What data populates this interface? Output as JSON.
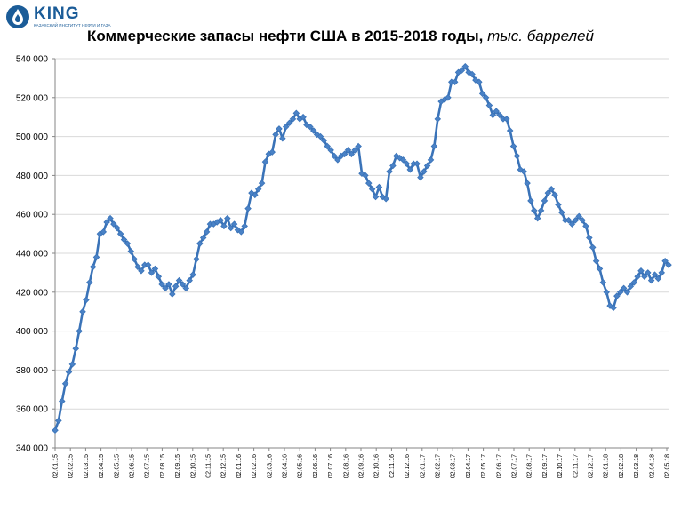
{
  "logo": {
    "brand": "KING",
    "subtitle": "КАЗАХСКИЙ ИНСТИТУТ НЕФТИ И ГАЗА"
  },
  "colors": {
    "series": "#3a73b8",
    "marker_fill": "#4a82c6",
    "grid": "#d9d9d9",
    "axis": "#868686",
    "brand": "#1b5c98"
  },
  "chart_data": {
    "type": "line",
    "title": "Коммерческие запасы нефти США в 2015-2018 годы,",
    "title_unit": "тыс. баррелей",
    "xlabel": "",
    "ylabel": "",
    "ylim": [
      340000,
      540000
    ],
    "y_ticks": [
      "540 000",
      "520 000",
      "500 000",
      "480 000",
      "460 000",
      "440 000",
      "420 000",
      "400 000",
      "380 000",
      "360 000",
      "340 000"
    ],
    "x_tick_labels": [
      "02.01.15",
      "02.02.15",
      "02.03.15",
      "02.04.15",
      "02.05.15",
      "02.06.15",
      "02.07.15",
      "02.08.15",
      "02.09.15",
      "02.10.15",
      "02.11.15",
      "02.12.15",
      "02.01.16",
      "02.02.16",
      "02.03.16",
      "02.04.16",
      "02.05.16",
      "02.06.16",
      "02.07.16",
      "02.08.16",
      "02.09.16",
      "02.10.16",
      "02.11.16",
      "02.12.16",
      "02.01.17",
      "02.02.17",
      "02.03.17",
      "02.04.17",
      "02.05.17",
      "02.06.17",
      "02.07.17",
      "02.08.17",
      "02.09.17",
      "02.10.17",
      "02.11.17",
      "02.12.17",
      "02.01.18",
      "02.02.18",
      "02.03.18",
      "02.04.18",
      "02.05.18"
    ],
    "grid": true,
    "legend": "none",
    "series": [
      {
        "values": [
          349000,
          354000,
          364000,
          373000,
          379000,
          383000,
          391000,
          400000,
          410000,
          416000,
          425000,
          433000,
          438000,
          450000,
          451000,
          456000,
          458000,
          455000,
          453000,
          450000,
          447000,
          445000,
          441000,
          437000,
          433000,
          431000,
          434000,
          434000,
          430000,
          432000,
          428000,
          424000,
          422000,
          424000,
          419000,
          423000,
          426000,
          424000,
          422000,
          426000,
          429000,
          437000,
          445000,
          448000,
          451000,
          455000,
          455000,
          456000,
          457000,
          454000,
          458000,
          453000,
          455000,
          452000,
          451000,
          454000,
          463000,
          471000,
          470000,
          473000,
          476000,
          487000,
          491000,
          492000,
          501000,
          504000,
          499000,
          505000,
          507000,
          509000,
          512000,
          509000,
          510000,
          506000,
          505000,
          503000,
          501000,
          500000,
          498000,
          495000,
          493000,
          490000,
          488000,
          490000,
          491000,
          493000,
          491000,
          493000,
          495000,
          481000,
          480000,
          476000,
          473000,
          469000,
          474000,
          469000,
          468000,
          482000,
          485000,
          490000,
          489000,
          488000,
          486000,
          483000,
          486000,
          486000,
          479000,
          482000,
          485000,
          488000,
          495000,
          509000,
          518000,
          519000,
          520000,
          528000,
          528000,
          533000,
          534000,
          536000,
          533000,
          532000,
          529000,
          528000,
          522000,
          520000,
          516000,
          511000,
          513000,
          511000,
          509000,
          509000,
          503000,
          495000,
          490000,
          483000,
          482000,
          476000,
          467000,
          462000,
          458000,
          462000,
          467000,
          471000,
          473000,
          470000,
          465000,
          461000,
          457000,
          457000,
          455000,
          457000,
          459000,
          457000,
          454000,
          448000,
          443000,
          436000,
          432000,
          425000,
          420000,
          413000,
          412000,
          418000,
          420000,
          422000,
          420000,
          423000,
          425000,
          428000,
          431000,
          428000,
          430000,
          426000,
          429000,
          427000,
          430000,
          436000,
          434000
        ]
      }
    ]
  }
}
